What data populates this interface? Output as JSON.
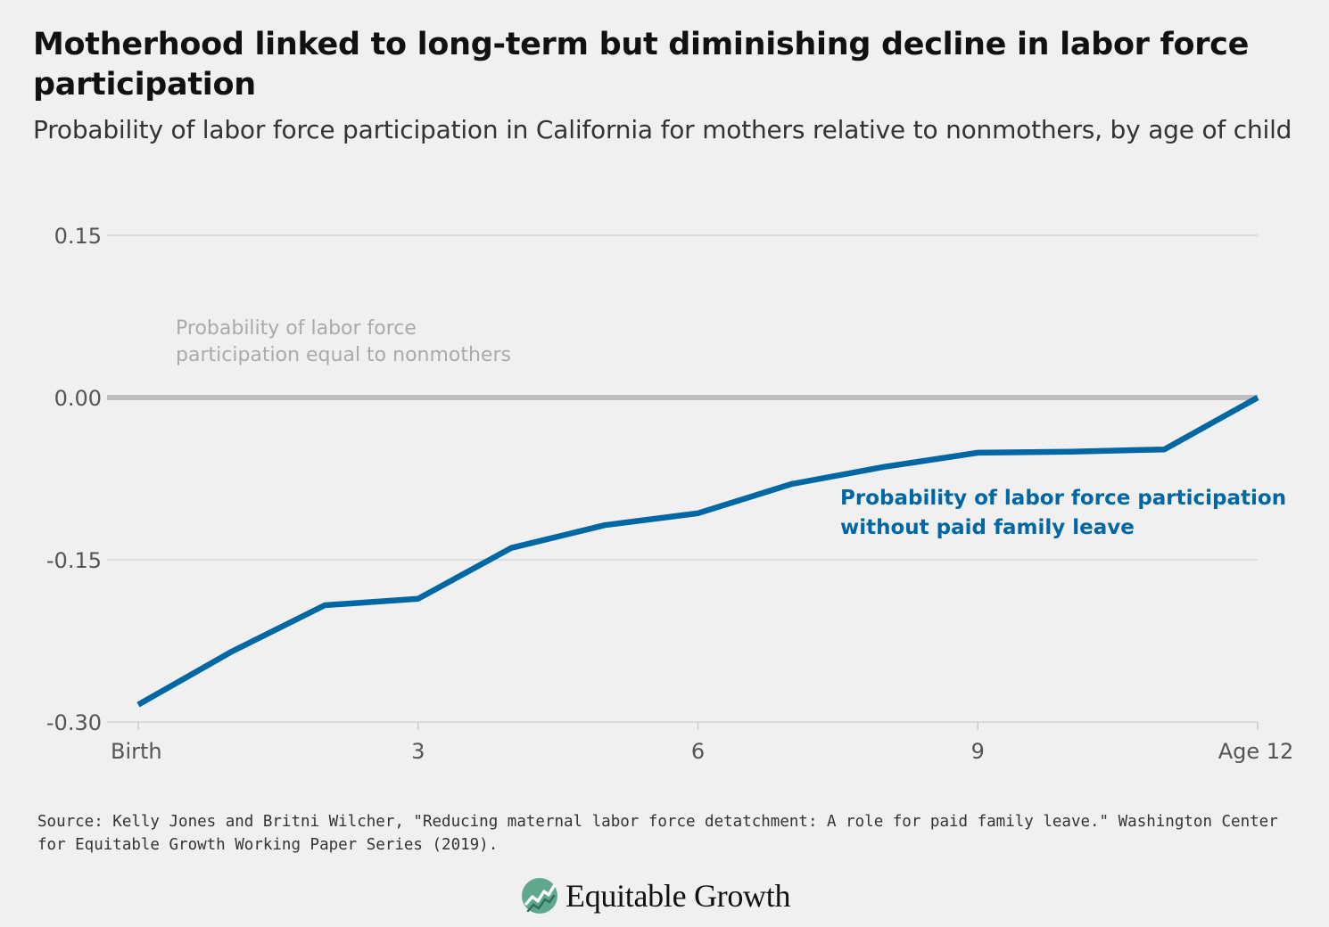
{
  "title": "Motherhood linked to long-term but diminishing decline in labor force participation",
  "subtitle": "Probability of labor force participation in California for mothers relative to nonmothers, by age of child",
  "chart_data": {
    "type": "line",
    "x": [
      0,
      1,
      2,
      3,
      4,
      5,
      6,
      7,
      8,
      9,
      10,
      11,
      12
    ],
    "x_tick_values": [
      0,
      3,
      6,
      9,
      12
    ],
    "x_tick_labels": [
      "Birth",
      "3",
      "6",
      "9",
      "Age 12"
    ],
    "y_ticks": [
      0.15,
      0.0,
      -0.15,
      -0.3
    ],
    "y_tick_labels": [
      "0.15",
      "0.00",
      "-0.15",
      "-0.30"
    ],
    "ylim": [
      -0.3,
      0.15
    ],
    "xlim": [
      0,
      12
    ],
    "grid": true,
    "series": [
      {
        "name": "Probability of labor force participation without paid family leave",
        "values": [
          -0.284,
          -0.235,
          -0.192,
          -0.186,
          -0.139,
          -0.118,
          -0.107,
          -0.08,
          -0.064,
          -0.051,
          -0.05,
          -0.048,
          0.0
        ],
        "color": "#0067a5"
      }
    ],
    "reference_line": {
      "value": 0.0,
      "label": "Probability of labor force participation equal to nonmothers",
      "label_lines": [
        "Probability of labor force",
        "participation equal to nonmothers"
      ],
      "color": "#bdbdbd"
    },
    "series_label_lines": [
      "Probability of labor force participation",
      "without paid family leave"
    ]
  },
  "source": "Source: Kelly Jones and Britni Wilcher, \"Reducing maternal labor force detatchment: A role for paid family leave.\" Washington Center for Equitable Growth Working Paper Series (2019).",
  "footer": {
    "brand": "Equitable Growth",
    "logo_icon": "equitable-growth-logo-icon",
    "logo_color": "#5fa88e"
  }
}
